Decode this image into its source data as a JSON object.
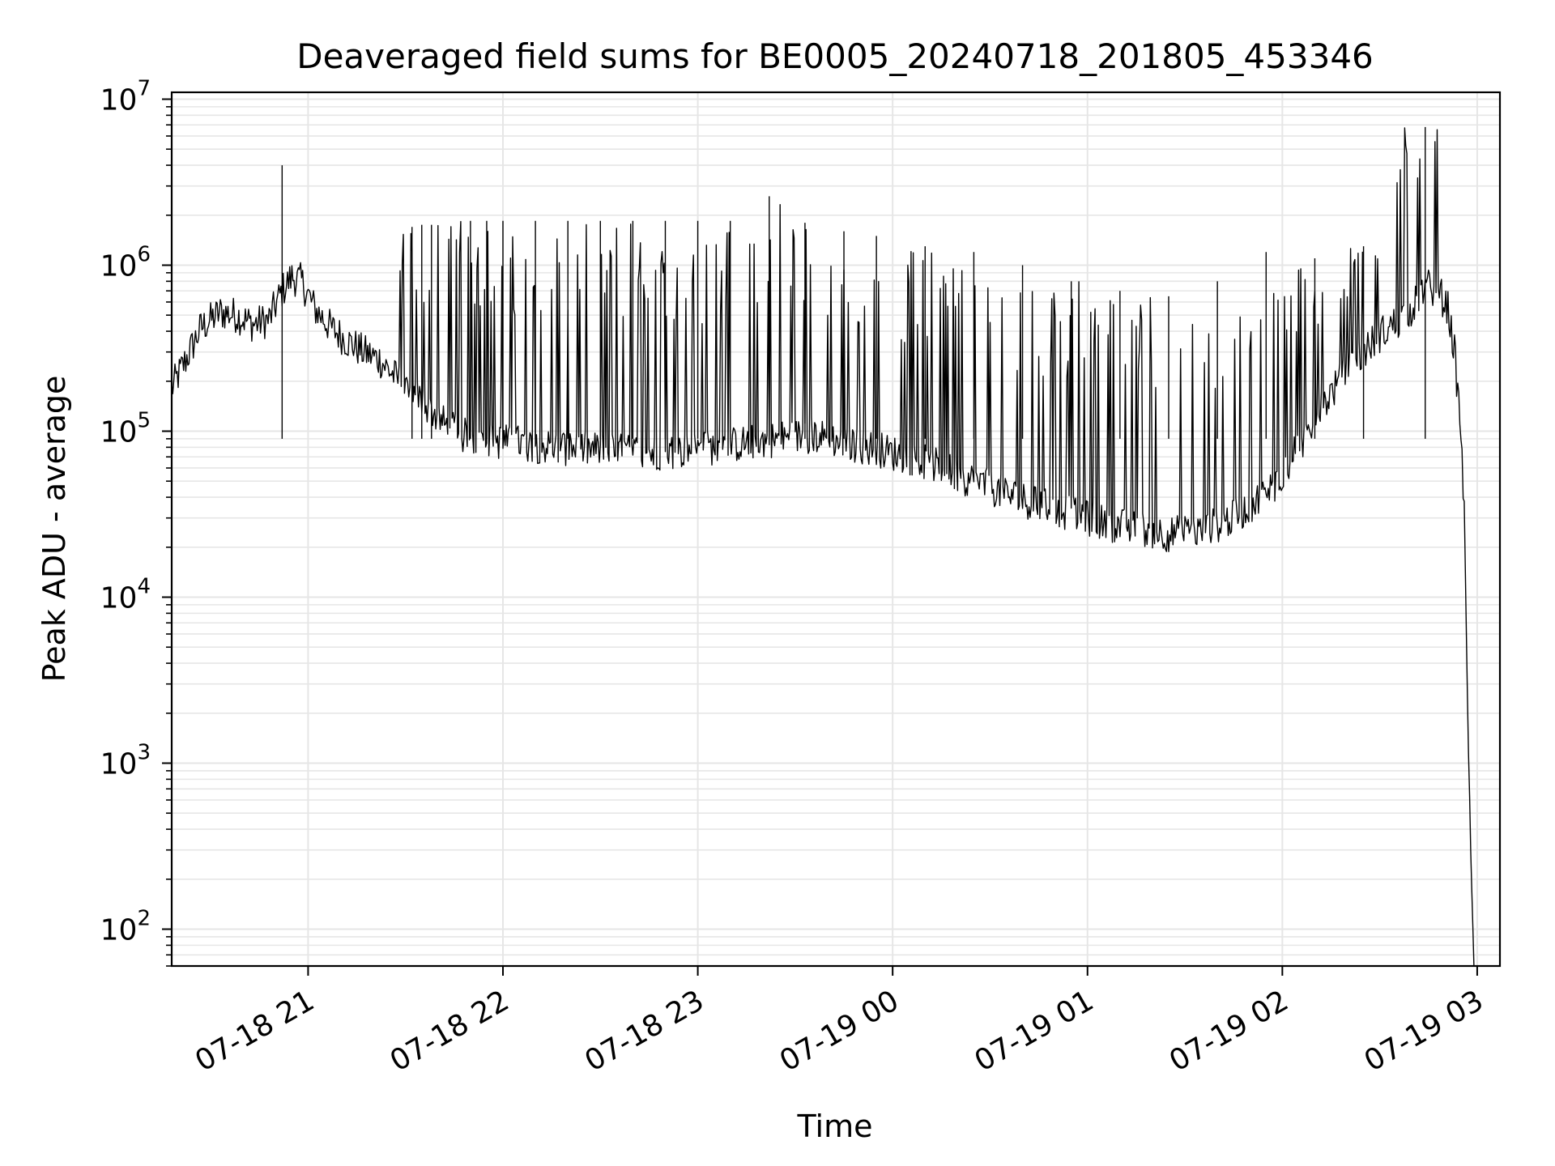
{
  "chart_data": {
    "type": "line",
    "title": "Deaveraged field sums for BE0005_20240718_201805_453346",
    "xlabel": "Time",
    "ylabel": "Peak ADU - average",
    "y_scale": "log",
    "ylim": [
      60,
      11000000
    ],
    "xlim": [
      "2024-07-18 20:18",
      "2024-07-19 03:07"
    ],
    "grid": true,
    "line_color": "#000000",
    "grid_color": "#e6e6e6",
    "x_ticks": [
      {
        "time": "2024-07-18 21:00",
        "label": "07-18 21"
      },
      {
        "time": "2024-07-18 22:00",
        "label": "07-18 22"
      },
      {
        "time": "2024-07-18 23:00",
        "label": "07-18 23"
      },
      {
        "time": "2024-07-19 00:00",
        "label": "07-19 00"
      },
      {
        "time": "2024-07-19 01:00",
        "label": "07-19 01"
      },
      {
        "time": "2024-07-19 02:00",
        "label": "07-19 02"
      },
      {
        "time": "2024-07-19 03:00",
        "label": "07-19 03"
      }
    ],
    "y_ticks": [
      {
        "value": 100,
        "base": "10",
        "exp": "2"
      },
      {
        "value": 1000,
        "base": "10",
        "exp": "3"
      },
      {
        "value": 10000,
        "base": "10",
        "exp": "4"
      },
      {
        "value": 100000,
        "base": "10",
        "exp": "5"
      },
      {
        "value": 1000000,
        "base": "10",
        "exp": "6"
      },
      {
        "value": 10000000,
        "base": "10",
        "exp": "7"
      }
    ],
    "series": [
      {
        "points": [
          [
            "2024-07-18 20:18",
            180000
          ],
          [
            "2024-07-18 20:22",
            260000
          ],
          [
            "2024-07-18 20:27",
            420000
          ],
          [
            "2024-07-18 20:33",
            520000
          ],
          [
            "2024-07-18 20:38",
            500000
          ],
          [
            "2024-07-18 20:43",
            440000
          ],
          [
            "2024-07-18 20:48",
            470000
          ],
          [
            "2024-07-18 20:52",
            700000
          ],
          [
            "2024-07-18 20:55",
            850000
          ],
          [
            "2024-07-18 20:58",
            800000
          ],
          [
            "2024-07-18 21:02",
            550000
          ],
          [
            "2024-07-18 21:07",
            420000
          ],
          [
            "2024-07-18 21:12",
            350000
          ],
          [
            "2024-07-18 21:17",
            300000
          ],
          [
            "2024-07-18 21:22",
            270000
          ],
          [
            "2024-07-18 21:27",
            210000
          ],
          [
            "2024-07-18 21:32",
            170000
          ],
          [
            "2024-07-18 21:37",
            140000
          ],
          [
            "2024-07-18 21:42",
            110000
          ],
          [
            "2024-07-18 21:47",
            95000
          ],
          [
            "2024-07-18 21:55",
            88000
          ],
          [
            "2024-07-18 22:05",
            85000
          ],
          [
            "2024-07-18 22:15",
            80000
          ],
          [
            "2024-07-18 22:25",
            78000
          ],
          [
            "2024-07-18 22:35",
            76000
          ],
          [
            "2024-07-18 22:45",
            74000
          ],
          [
            "2024-07-18 22:55",
            76000
          ],
          [
            "2024-07-18 23:05",
            80000
          ],
          [
            "2024-07-18 23:15",
            85000
          ],
          [
            "2024-07-18 23:25",
            90000
          ],
          [
            "2024-07-18 23:35",
            95000
          ],
          [
            "2024-07-18 23:45",
            85000
          ],
          [
            "2024-07-18 23:55",
            78000
          ],
          [
            "2024-07-19 00:05",
            70000
          ],
          [
            "2024-07-19 00:15",
            60000
          ],
          [
            "2024-07-19 00:25",
            50000
          ],
          [
            "2024-07-19 00:35",
            42000
          ],
          [
            "2024-07-19 00:45",
            36000
          ],
          [
            "2024-07-19 00:55",
            32000
          ],
          [
            "2024-07-19 01:05",
            28000
          ],
          [
            "2024-07-19 01:15",
            26000
          ],
          [
            "2024-07-19 01:25",
            24000
          ],
          [
            "2024-07-19 01:35",
            25000
          ],
          [
            "2024-07-19 01:45",
            30000
          ],
          [
            "2024-07-19 01:55",
            42000
          ],
          [
            "2024-07-19 02:00",
            55000
          ],
          [
            "2024-07-19 02:05",
            80000
          ],
          [
            "2024-07-19 02:10",
            120000
          ],
          [
            "2024-07-19 02:15",
            170000
          ],
          [
            "2024-07-19 02:20",
            230000
          ],
          [
            "2024-07-19 02:25",
            300000
          ],
          [
            "2024-07-19 02:30",
            380000
          ],
          [
            "2024-07-19 02:35",
            450000
          ],
          [
            "2024-07-19 02:40",
            550000
          ],
          [
            "2024-07-19 02:44",
            750000
          ],
          [
            "2024-07-19 02:48",
            700000
          ],
          [
            "2024-07-19 02:51",
            550000
          ],
          [
            "2024-07-19 02:53",
            300000
          ],
          [
            "2024-07-19 02:55",
            100000
          ],
          [
            "2024-07-19 02:56",
            30000
          ],
          [
            "2024-07-19 02:57",
            3000
          ],
          [
            "2024-07-19 02:58",
            300
          ],
          [
            "2024-07-19 02:59",
            60
          ]
        ],
        "spikes": [
          [
            "2024-07-18 20:52",
            4000000
          ],
          [
            "2024-07-18 21:32",
            1700000
          ],
          [
            "2024-07-18 21:35",
            1750000
          ],
          [
            "2024-07-18 21:38",
            1750000
          ],
          [
            "2024-07-18 21:50",
            1850000
          ],
          [
            "2024-07-18 21:55",
            1850000
          ],
          [
            "2024-07-18 22:00",
            1850000
          ],
          [
            "2024-07-18 22:10",
            1850000
          ],
          [
            "2024-07-18 22:20",
            1850000
          ],
          [
            "2024-07-18 22:30",
            1850000
          ],
          [
            "2024-07-18 22:40",
            1850000
          ],
          [
            "2024-07-18 22:50",
            1850000
          ],
          [
            "2024-07-18 23:00",
            1850000
          ],
          [
            "2024-07-18 23:10",
            1850000
          ],
          [
            "2024-07-18 23:22",
            2600000
          ],
          [
            "2024-07-18 23:33",
            1800000
          ],
          [
            "2024-07-18 23:45",
            1600000
          ],
          [
            "2024-07-18 23:55",
            1500000
          ],
          [
            "2024-07-19 00:10",
            1300000
          ],
          [
            "2024-07-19 00:25",
            1200000
          ],
          [
            "2024-07-19 00:40",
            1000000
          ],
          [
            "2024-07-19 00:55",
            800000
          ],
          [
            "2024-07-19 01:10",
            700000
          ],
          [
            "2024-07-19 01:25",
            650000
          ],
          [
            "2024-07-19 01:40",
            800000
          ],
          [
            "2024-07-19 01:55",
            1200000
          ],
          [
            "2024-07-19 02:10",
            1100000
          ],
          [
            "2024-07-19 02:25",
            1300000
          ],
          [
            "2024-07-19 02:44",
            6800000
          ]
        ]
      }
    ]
  }
}
